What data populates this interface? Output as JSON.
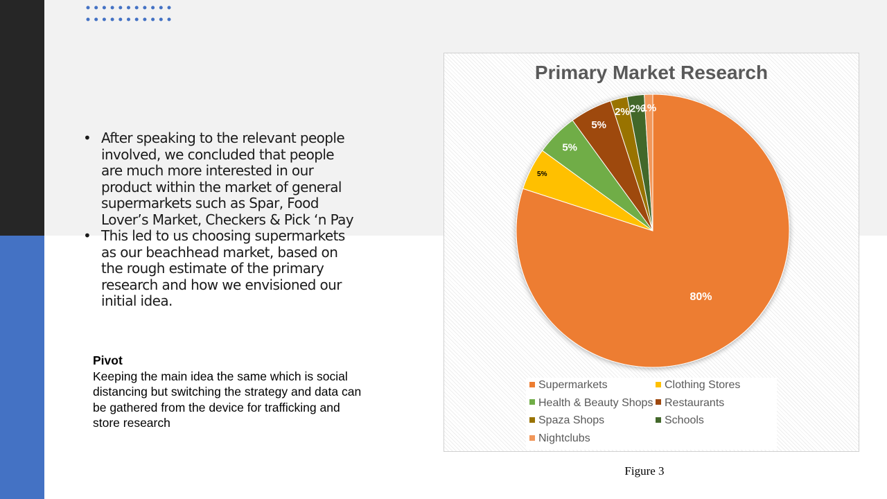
{
  "bullets": [
    "After speaking to the relevant people involved, we concluded that people are much more interested in our product within the market of general supermarkets such as Spar, Food Lover’s Market, Checkers & Pick ‘n Pay",
    "This led to us choosing supermarkets as our beachhead market, based on the rough estimate of the primary research and how we envisioned our initial idea."
  ],
  "pivot": {
    "title": "Pivot",
    "body": "Keeping the main idea the same which is social distancing but switching the strategy and data can be gathered from the device for trafficking and store research"
  },
  "figure_caption": "Figure 3",
  "colors": {
    "top_band": "#f2f2f2",
    "left_dark": "#262626",
    "accent_blue": "#4472c4"
  },
  "chart_data": {
    "type": "pie",
    "title": "Primary Market Research",
    "categories": [
      "Supermarkets",
      "Clothing Stores",
      "Health & Beauty Shops",
      "Restaurants",
      "Spaza Shops",
      "Schools",
      "Nightclubs"
    ],
    "values": [
      80,
      5,
      5,
      5,
      2,
      2,
      1
    ],
    "labels": [
      "80%",
      "5%",
      "5%",
      "5%",
      "2%",
      "2%",
      "1%"
    ],
    "colors": [
      "#ed7d31",
      "#ffc000",
      "#70ad47",
      "#9e480e",
      "#997300",
      "#43682b",
      "#f1975a"
    ],
    "legend_position": "bottom",
    "grid": false
  }
}
